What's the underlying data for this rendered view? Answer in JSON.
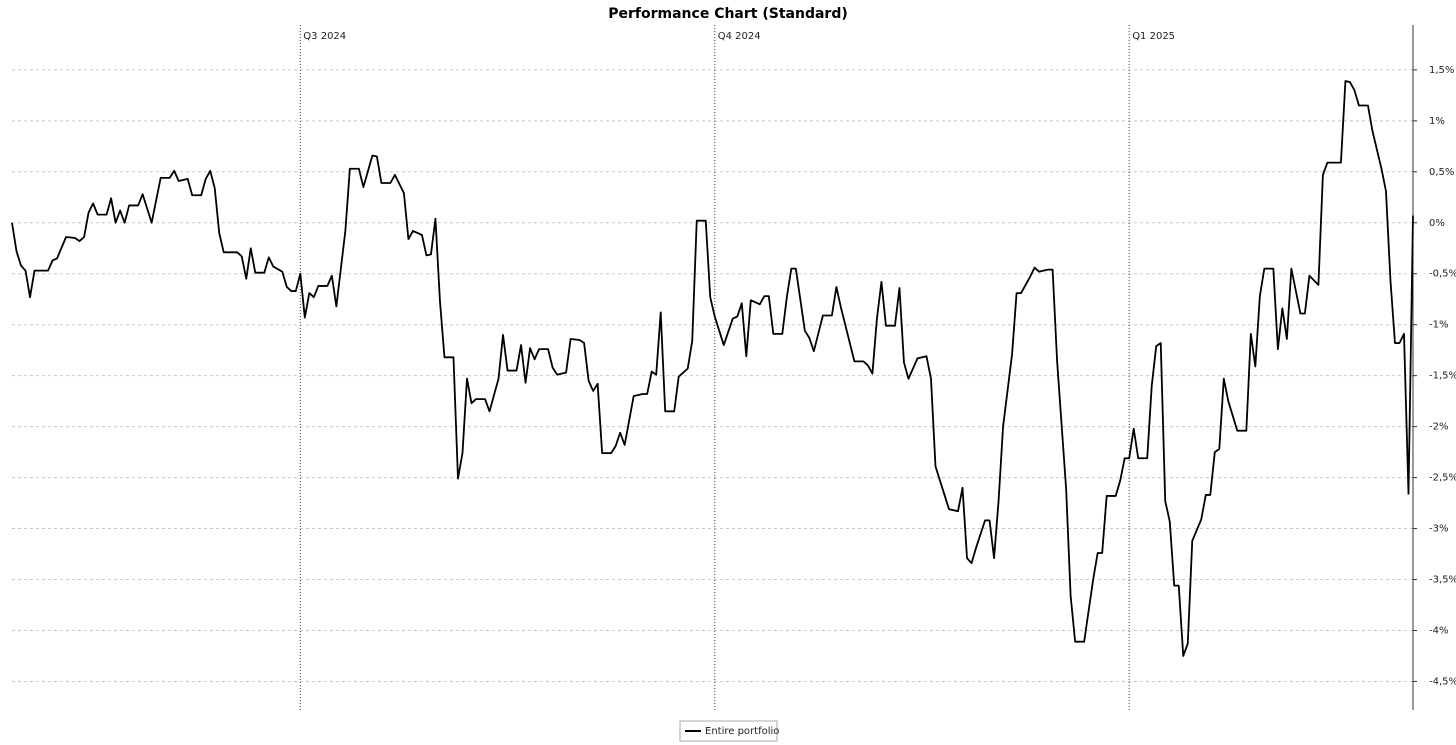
{
  "chart_data": {
    "type": "line",
    "title": "Performance Chart (Standard)",
    "x": [
      0,
      1,
      2,
      3,
      4,
      5,
      8,
      9,
      10,
      12,
      14,
      15,
      16,
      17,
      18,
      19,
      21,
      22,
      23,
      24,
      25,
      26,
      28,
      29,
      31,
      33,
      35,
      36,
      37,
      39,
      40,
      42,
      43,
      44,
      45,
      46,
      47,
      50,
      51,
      52,
      53,
      54,
      56,
      57,
      58,
      60,
      61,
      62,
      63,
      64,
      65,
      66,
      67,
      68,
      70,
      71,
      72,
      74,
      75,
      77,
      78,
      80,
      81,
      82,
      84,
      85,
      87,
      88,
      89,
      91,
      92,
      93,
      94,
      95,
      96,
      98,
      99,
      100,
      101,
      102,
      103,
      105,
      106,
      108,
      109,
      110,
      112,
      113,
      114,
      115,
      116,
      117,
      119,
      120,
      121,
      123,
      124,
      126,
      127,
      128,
      129,
      130,
      131,
      133,
      134,
      135,
      136,
      138,
      140,
      141,
      142,
      143,
      144,
      145,
      147,
      148,
      150,
      151,
      152,
      154,
      155,
      156,
      158,
      160,
      161,
      162,
      163,
      164,
      166,
      167,
      168,
      169,
      171,
      172,
      173,
      174,
      176,
      177,
      178,
      180,
      182,
      183,
      184,
      187,
      189,
      190,
      191,
      192,
      193,
      194,
      196,
      197,
      198,
      199,
      201,
      203,
      204,
      205,
      207,
      208,
      210,
      211,
      212,
      213,
      214,
      216,
      217,
      218,
      219,
      220,
      222,
      223,
      224,
      226,
      227,
      228,
      230,
      231,
      232,
      234,
      235,
      236,
      238,
      240,
      241,
      242,
      243,
      245,
      246,
      247,
      248,
      249,
      250,
      252,
      253,
      254,
      255,
      256,
      257,
      258,
      259,
      260,
      261,
      262,
      264,
      265,
      266,
      267,
      268,
      269,
      270,
      272,
      274,
      275,
      276,
      277,
      278,
      280,
      281,
      282,
      283,
      284,
      286,
      287,
      288,
      290,
      291,
      292,
      295,
      296,
      297,
      298,
      299,
      301,
      302,
      304,
      305,
      306,
      307,
      308,
      309,
      310,
      311
    ],
    "series": [
      {
        "name": "Entire portfolio",
        "color": "#000000",
        "values": [
          0,
          -0.28,
          -0.42,
          -0.47,
          -0.73,
          -0.47,
          -0.47,
          -0.37,
          -0.35,
          -0.14,
          -0.15,
          -0.18,
          -0.14,
          0.1,
          0.19,
          0.08,
          0.08,
          0.24,
          0,
          0.12,
          0,
          0.17,
          0.17,
          0.28,
          0,
          0.44,
          0.44,
          0.51,
          0.41,
          0.43,
          0.27,
          0.27,
          0.43,
          0.51,
          0.34,
          -0.1,
          -0.29,
          -0.29,
          -0.33,
          -0.55,
          -0.25,
          -0.49,
          -0.49,
          -0.34,
          -0.43,
          -0.48,
          -0.63,
          -0.67,
          -0.67,
          -0.5,
          -0.93,
          -0.69,
          -0.73,
          -0.62,
          -0.62,
          -0.52,
          -0.82,
          -0.08,
          0.53,
          0.53,
          0.35,
          0.66,
          0.65,
          0.39,
          0.39,
          0.47,
          0.29,
          -0.16,
          -0.08,
          -0.12,
          -0.32,
          -0.31,
          0.04,
          -0.77,
          -1.32,
          -1.32,
          -2.51,
          -2.26,
          -1.53,
          -1.77,
          -1.73,
          -1.73,
          -1.85,
          -1.53,
          -1.1,
          -1.45,
          -1.45,
          -1.2,
          -1.57,
          -1.23,
          -1.34,
          -1.24,
          -1.24,
          -1.42,
          -1.49,
          -1.47,
          -1.14,
          -1.15,
          -1.18,
          -1.55,
          -1.65,
          -1.58,
          -2.26,
          -2.26,
          -2.19,
          -2.06,
          -2.18,
          -1.7,
          -1.68,
          -1.68,
          -1.46,
          -1.49,
          -0.88,
          -1.85,
          -1.85,
          -1.51,
          -1.43,
          -1.16,
          0.02,
          0.02,
          -0.73,
          -0.92,
          -1.2,
          -0.94,
          -0.92,
          -0.79,
          -1.31,
          -0.76,
          -0.8,
          -0.72,
          -0.72,
          -1.09,
          -1.09,
          -0.73,
          -0.45,
          -0.45,
          -1.06,
          -1.13,
          -1.26,
          -0.91,
          -0.91,
          -0.63,
          -0.83,
          -1.36,
          -1.36,
          -1.4,
          -1.48,
          -0.94,
          -0.58,
          -1.01,
          -1.01,
          -0.64,
          -1.37,
          -1.53,
          -1.33,
          -1.31,
          -1.53,
          -2.39,
          -2.67,
          -2.81,
          -2.83,
          -2.6,
          -3.29,
          -3.34,
          -3.19,
          -2.92,
          -2.92,
          -3.29,
          -2.73,
          -2,
          -1.29,
          -0.69,
          -0.69,
          -0.53,
          -0.44,
          -0.48,
          -0.46,
          -0.46,
          -1.36,
          -2.61,
          -3.66,
          -4.11,
          -4.11,
          -3.5,
          -3.24,
          -3.24,
          -2.68,
          -2.68,
          -2.53,
          -2.31,
          -2.31,
          -2.02,
          -2.31,
          -2.31,
          -1.6,
          -1.21,
          -1.18,
          -2.73,
          -2.93,
          -3.56,
          -3.56,
          -4.25,
          -4.13,
          -3.12,
          -2.91,
          -2.67,
          -2.67,
          -2.25,
          -2.22,
          -1.53,
          -1.75,
          -2.04,
          -2.04,
          -1.09,
          -1.41,
          -0.72,
          -0.45,
          -0.45,
          -1.24,
          -0.84,
          -1.14,
          -0.45,
          -0.89,
          -0.89,
          -0.52,
          -0.61,
          0.47,
          0.59,
          0.59,
          1.39,
          1.38,
          1.3,
          1.15,
          1.15,
          0.9,
          0.53,
          0.31,
          -0.57,
          -1.18,
          -1.18,
          -1.09,
          -2.66,
          0.07
        ]
      }
    ],
    "xlim": [
      0,
      311
    ],
    "xticks": [
      {
        "value": 64,
        "label": "Q3 2024"
      },
      {
        "value": 156,
        "label": "Q4 2024"
      },
      {
        "value": 248,
        "label": "Q1 2025"
      }
    ],
    "ylim": [
      -4.78,
      1.94
    ],
    "yticks": [
      {
        "value": 1.5,
        "label": "1,5%"
      },
      {
        "value": 1,
        "label": "1%"
      },
      {
        "value": 0.5,
        "label": "0,5%"
      },
      {
        "value": 0,
        "label": "0%"
      },
      {
        "value": -0.5,
        "label": "-0,5%"
      },
      {
        "value": -1,
        "label": "-1%"
      },
      {
        "value": -1.5,
        "label": "-1,5%"
      },
      {
        "value": -2,
        "label": "-2%"
      },
      {
        "value": -2.5,
        "label": "-2,5%"
      },
      {
        "value": -3,
        "label": "-3%"
      },
      {
        "value": -3.5,
        "label": "-3,5%"
      },
      {
        "value": -4,
        "label": "-4%"
      },
      {
        "value": -4.5,
        "label": "-4,5%"
      }
    ],
    "grid": true,
    "legend": "bottom"
  }
}
